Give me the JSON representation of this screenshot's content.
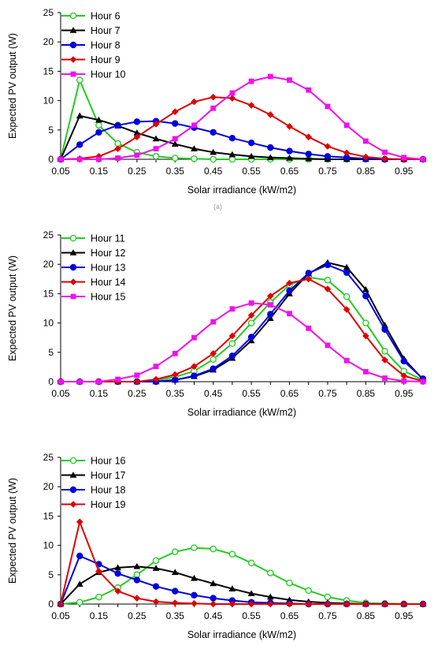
{
  "figure": {
    "stray_mark": "(a)"
  },
  "chart_data": [
    {
      "type": "line",
      "xlabel": "Solar irradiance (kW/m2)",
      "ylabel": "Expected PV output (W)",
      "ylim": [
        0,
        25
      ],
      "yticks": [
        0,
        5,
        10,
        15,
        20,
        25
      ],
      "xlim": [
        0.05,
        1.0
      ],
      "xticks": [
        "0.05",
        "0.15",
        "0.25",
        "0.35",
        "0.45",
        "0.55",
        "0.65",
        "0.75",
        "0.85",
        "0.95"
      ],
      "x": [
        0.05,
        0.1,
        0.15,
        0.2,
        0.25,
        0.3,
        0.35,
        0.4,
        0.45,
        0.5,
        0.55,
        0.6,
        0.65,
        0.7,
        0.75,
        0.8,
        0.85,
        0.9,
        0.95,
        1.0
      ],
      "grid": false,
      "legend": "top-left",
      "series": [
        {
          "name": "Hour 6",
          "color": "#22cc22",
          "marker": "open-circle",
          "values": [
            0,
            13.5,
            5.8,
            2.7,
            1.2,
            0.5,
            0.2,
            0.1,
            0,
            0,
            0,
            0,
            0,
            0,
            0,
            0,
            0,
            0,
            0,
            0
          ]
        },
        {
          "name": "Hour 7",
          "color": "#000000",
          "marker": "triangle",
          "values": [
            0,
            7.4,
            6.7,
            5.7,
            4.5,
            3.5,
            2.6,
            1.8,
            1.2,
            0.8,
            0.5,
            0.3,
            0.2,
            0.1,
            0,
            0,
            0,
            0,
            0,
            0
          ]
        },
        {
          "name": "Hour 8",
          "color": "#0000dd",
          "marker": "circle",
          "values": [
            0,
            2.5,
            4.6,
            5.8,
            6.4,
            6.5,
            6.1,
            5.4,
            4.6,
            3.6,
            2.8,
            2.0,
            1.4,
            0.9,
            0.5,
            0.3,
            0.1,
            0,
            0,
            0
          ]
        },
        {
          "name": "Hour 9",
          "color": "#dd0000",
          "marker": "diamond",
          "values": [
            0,
            0.1,
            0.5,
            1.8,
            3.8,
            6.0,
            8.1,
            9.8,
            10.6,
            10.4,
            9.2,
            7.6,
            5.6,
            3.8,
            2.2,
            1.1,
            0.4,
            0.1,
            0,
            0
          ]
        },
        {
          "name": "Hour 10",
          "color": "#ee11ee",
          "marker": "square",
          "values": [
            0,
            0,
            0,
            0.2,
            0.7,
            1.8,
            3.5,
            5.8,
            8.7,
            11.3,
            13.3,
            14.1,
            13.5,
            11.8,
            9.0,
            5.8,
            3.1,
            1.2,
            0.3,
            0
          ]
        }
      ]
    },
    {
      "type": "line",
      "xlabel": "Solar irradiance (kW/m2)",
      "ylabel": "Expected PV output (W)",
      "ylim": [
        0,
        25
      ],
      "yticks": [
        0,
        5,
        10,
        15,
        20,
        25
      ],
      "xlim": [
        0.05,
        1.0
      ],
      "xticks": [
        "0.05",
        "0.15",
        "0.25",
        "0.35",
        "0.45",
        "0.55",
        "0.65",
        "0.75",
        "0.85",
        "0.95"
      ],
      "x": [
        0.05,
        0.1,
        0.15,
        0.2,
        0.25,
        0.3,
        0.35,
        0.4,
        0.45,
        0.5,
        0.55,
        0.6,
        0.65,
        0.7,
        0.75,
        0.8,
        0.85,
        0.9,
        0.95,
        1.0
      ],
      "grid": false,
      "legend": "top-left",
      "series": [
        {
          "name": "Hour 11",
          "color": "#22cc22",
          "marker": "open-circle",
          "values": [
            0,
            0,
            0,
            0,
            0,
            0.2,
            0.8,
            1.8,
            3.8,
            6.5,
            10.0,
            13.5,
            16.5,
            17.8,
            17.3,
            14.5,
            10.0,
            5.2,
            1.8,
            0.3
          ]
        },
        {
          "name": "Hour 12",
          "color": "#000000",
          "marker": "triangle",
          "values": [
            0,
            0,
            0,
            0,
            0,
            0,
            0.3,
            0.9,
            2.0,
            4.0,
            7.0,
            10.8,
            15.0,
            18.4,
            20.3,
            19.5,
            15.7,
            9.6,
            3.9,
            0.4
          ]
        },
        {
          "name": "Hour 13",
          "color": "#0000dd",
          "marker": "circle",
          "values": [
            0,
            0,
            0,
            0,
            0,
            0,
            0.3,
            1.0,
            2.2,
            4.4,
            7.6,
            11.5,
            15.5,
            18.5,
            19.9,
            18.6,
            14.6,
            8.9,
            3.5,
            0.5
          ]
        },
        {
          "name": "Hour 14",
          "color": "#dd0000",
          "marker": "diamond",
          "values": [
            0,
            0,
            0,
            0,
            0,
            0.4,
            1.2,
            2.6,
            4.8,
            7.8,
            11.3,
            14.6,
            16.8,
            17.5,
            15.8,
            12.3,
            7.8,
            3.7,
            1.0,
            0.1
          ]
        },
        {
          "name": "Hour 15",
          "color": "#ee11ee",
          "marker": "square",
          "values": [
            0,
            0,
            0,
            0.4,
            1.1,
            2.6,
            4.8,
            7.5,
            10.2,
            12.4,
            13.4,
            13.1,
            11.6,
            9.1,
            6.2,
            3.6,
            1.7,
            0.6,
            0.1,
            0
          ]
        }
      ]
    },
    {
      "type": "line",
      "xlabel": "Solar irradiance (kW/m2)",
      "ylabel": "Expected PV output (W)",
      "ylim": [
        0,
        25
      ],
      "yticks": [
        0,
        5,
        10,
        15,
        20,
        25
      ],
      "xlim": [
        0.05,
        1.0
      ],
      "xticks": [
        "0.05",
        "0.15",
        "0.25",
        "0.35",
        "0.45",
        "0.55",
        "0.65",
        "0.75",
        "0.85",
        "0.95"
      ],
      "x": [
        0.05,
        0.1,
        0.15,
        0.2,
        0.25,
        0.3,
        0.35,
        0.4,
        0.45,
        0.5,
        0.55,
        0.6,
        0.65,
        0.7,
        0.75,
        0.8,
        0.85,
        0.9,
        0.95,
        1.0
      ],
      "grid": false,
      "legend": "top-left",
      "series": [
        {
          "name": "Hour 16",
          "color": "#22cc22",
          "marker": "open-circle",
          "values": [
            0,
            0.3,
            1.2,
            2.8,
            5.0,
            7.4,
            8.9,
            9.6,
            9.4,
            8.5,
            7.0,
            5.3,
            3.6,
            2.3,
            1.2,
            0.6,
            0.2,
            0.1,
            0,
            0
          ]
        },
        {
          "name": "Hour 17",
          "color": "#000000",
          "marker": "triangle",
          "values": [
            0,
            3.4,
            5.4,
            6.2,
            6.4,
            6.1,
            5.4,
            4.4,
            3.5,
            2.6,
            1.8,
            1.2,
            0.7,
            0.4,
            0.2,
            0.1,
            0,
            0,
            0,
            0
          ]
        },
        {
          "name": "Hour 18",
          "color": "#0000dd",
          "marker": "circle",
          "values": [
            0,
            8.2,
            6.8,
            5.2,
            4.1,
            3.0,
            2.2,
            1.5,
            1.0,
            0.6,
            0.3,
            0.2,
            0.1,
            0,
            0,
            0,
            0,
            0,
            0,
            0
          ]
        },
        {
          "name": "Hour 19",
          "color": "#dd0000",
          "marker": "diamond",
          "values": [
            0,
            14.0,
            5.6,
            2.2,
            1.0,
            0.4,
            0.2,
            0.1,
            0,
            0,
            0,
            0,
            0,
            0,
            0,
            0,
            0,
            0,
            0,
            0
          ]
        }
      ]
    }
  ]
}
